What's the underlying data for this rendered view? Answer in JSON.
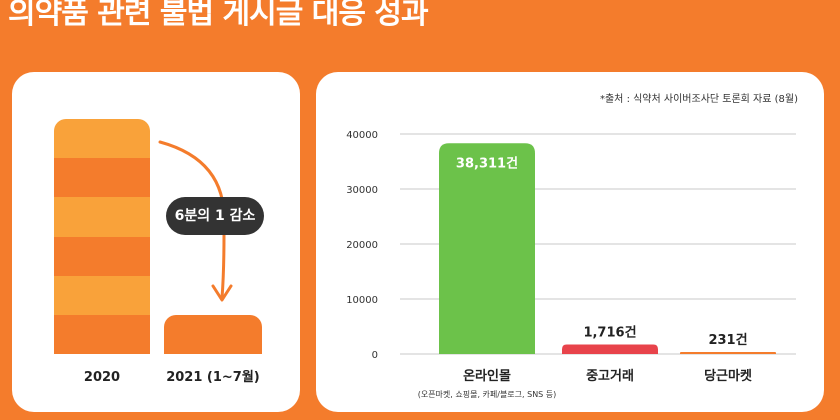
{
  "title": "의약품 관련 불법 게시글 대응 성과",
  "comparison": {
    "callout": "6분의 1 감소",
    "years": [
      "2020",
      "2021 (1~7월)"
    ]
  },
  "source_note": "*출처 : 식약처 사이버조사단 토론회 자료 (8월)",
  "colors": {
    "background": "#f47c2c",
    "online_mall": "#6cc24a",
    "used_trade": "#e8434b",
    "danggeun": "#f47c2c"
  },
  "chart_data": {
    "type": "bar",
    "categories": [
      "온라인몰",
      "중고거래",
      "당근마켓"
    ],
    "category_notes": [
      "(오픈마켓, 쇼핑몰, 카페/블로그, SNS 등)",
      "",
      ""
    ],
    "values": [
      38311,
      1716,
      231
    ],
    "data_labels": [
      "38,311건",
      "1,716건",
      "231건"
    ],
    "bar_colors": [
      "#6cc24a",
      "#e8434b",
      "#f47c2c"
    ],
    "yticks": [
      0,
      10000,
      20000,
      30000,
      40000
    ],
    "ylim": [
      0,
      40000
    ],
    "grid": true
  }
}
